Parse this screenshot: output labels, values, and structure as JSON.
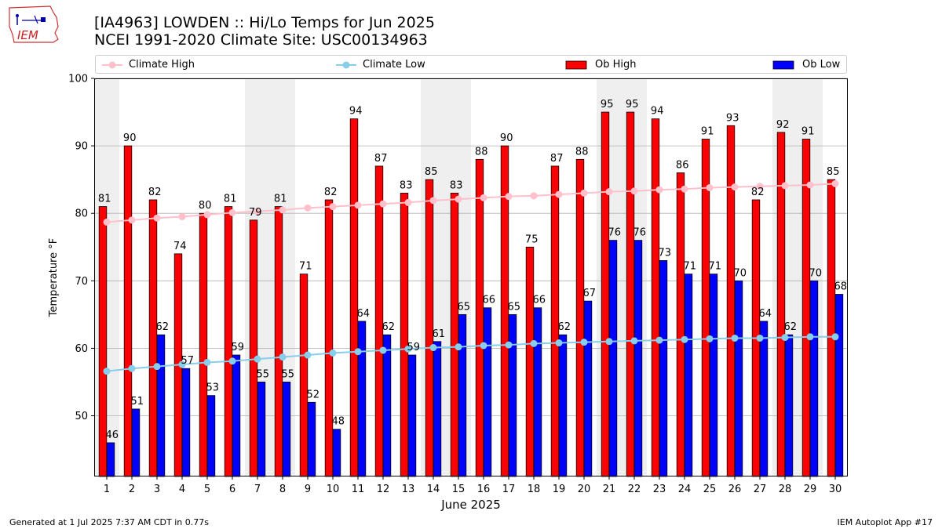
{
  "header": {
    "title_line1": "[IA4963] LOWDEN :: Hi/Lo Temps for Jun 2025",
    "title_line2": "NCEI 1991-2020 Climate Site: USC00134963"
  },
  "logo": {
    "text": "IEM",
    "icon": "iowa-state-outline-icon"
  },
  "footer": {
    "left": "Generated at 1 Jul 2025 7:37 AM CDT in 0.77s",
    "right": "IEM Autoplot App #17"
  },
  "colors": {
    "ob_high": "#ff0000",
    "ob_low": "#0000ff",
    "climate_high": "#ffc0cb",
    "climate_low": "#87ceeb",
    "weekend_band": "#efefef",
    "grid": "#b0b0b0"
  },
  "chart_data": {
    "type": "bar",
    "xlabel": "June 2025",
    "ylabel": "Temperature °F",
    "ylim": [
      41,
      100
    ],
    "yticks": [
      50,
      60,
      70,
      80,
      90,
      100
    ],
    "grid": "horizontal",
    "legend_position": "top",
    "categories": [
      1,
      2,
      3,
      4,
      5,
      6,
      7,
      8,
      9,
      10,
      11,
      12,
      13,
      14,
      15,
      16,
      17,
      18,
      19,
      20,
      21,
      22,
      23,
      24,
      25,
      26,
      27,
      28,
      29,
      30
    ],
    "weekend_days": [
      1,
      7,
      8,
      14,
      15,
      21,
      22,
      28,
      29
    ],
    "series": [
      {
        "name": "Ob High",
        "kind": "bar",
        "values": [
          81,
          90,
          82,
          74,
          80,
          81,
          79,
          81,
          71,
          82,
          94,
          87,
          83,
          85,
          83,
          88,
          90,
          75,
          87,
          88,
          95,
          95,
          94,
          86,
          91,
          93,
          82,
          92,
          91,
          85
        ]
      },
      {
        "name": "Ob Low",
        "kind": "bar",
        "values": [
          46,
          51,
          62,
          57,
          53,
          59,
          55,
          55,
          52,
          48,
          64,
          62,
          59,
          61,
          65,
          66,
          65,
          66,
          62,
          67,
          76,
          76,
          73,
          71,
          71,
          70,
          64,
          62,
          70,
          68
        ]
      },
      {
        "name": "Climate High",
        "kind": "line",
        "values": [
          78.7,
          79.0,
          79.3,
          79.5,
          79.8,
          80.1,
          80.3,
          80.5,
          80.8,
          81.0,
          81.2,
          81.4,
          81.6,
          81.9,
          82.1,
          82.3,
          82.5,
          82.6,
          82.8,
          83.0,
          83.2,
          83.3,
          83.5,
          83.6,
          83.8,
          83.9,
          84.0,
          84.1,
          84.2,
          84.4
        ]
      },
      {
        "name": "Climate Low",
        "kind": "line",
        "values": [
          56.6,
          57.0,
          57.3,
          57.6,
          57.9,
          58.1,
          58.4,
          58.7,
          59.0,
          59.3,
          59.5,
          59.7,
          59.9,
          60.1,
          60.2,
          60.4,
          60.5,
          60.7,
          60.8,
          60.9,
          61.0,
          61.1,
          61.2,
          61.3,
          61.4,
          61.5,
          61.5,
          61.6,
          61.7,
          61.7
        ]
      }
    ]
  }
}
